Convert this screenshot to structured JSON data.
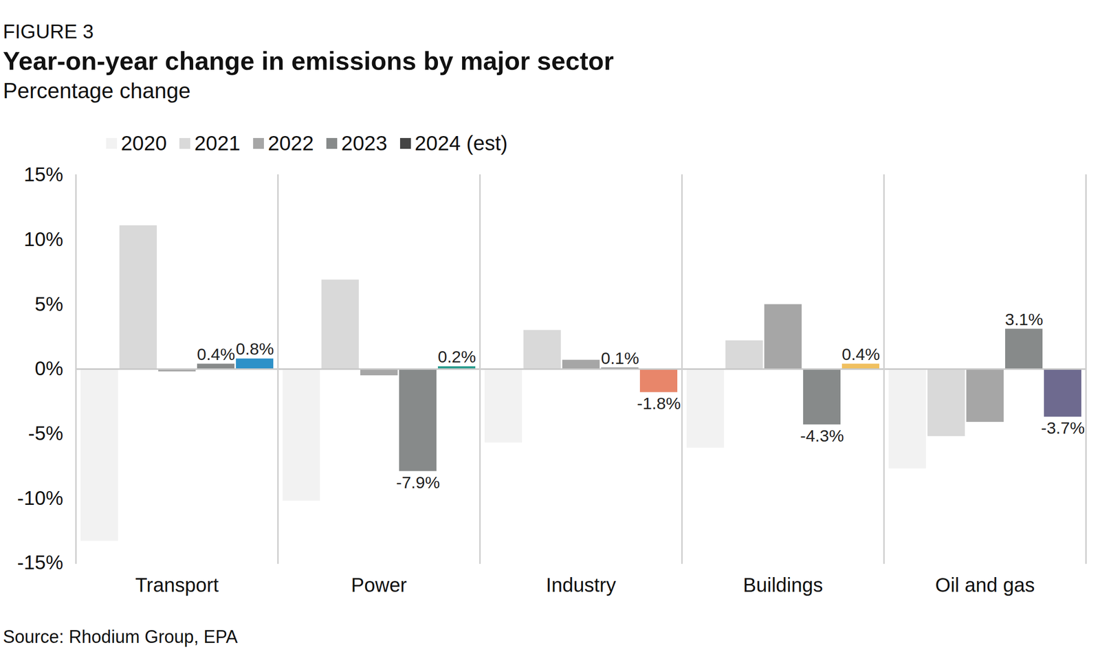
{
  "chart_data": {
    "type": "bar",
    "figure_label": "FIGURE 3",
    "title": "Year-on-year change in emissions by major sector",
    "subtitle": "Percentage change",
    "caption": "Source: Rhodium Group, EPA",
    "categories": [
      "Transport",
      "Power",
      "Industry",
      "Buildings",
      "Oil and gas"
    ],
    "series": [
      {
        "name": "2020",
        "color": "#f2f2f2",
        "values": [
          -13.3,
          -10.2,
          -5.7,
          -6.1,
          -7.7
        ]
      },
      {
        "name": "2021",
        "color": "#d9d9d9",
        "values": [
          11.1,
          6.9,
          3.0,
          2.2,
          -5.2
        ]
      },
      {
        "name": "2022",
        "color": "#a6a6a6",
        "values": [
          -0.2,
          -0.5,
          0.7,
          5.0,
          -4.1
        ]
      },
      {
        "name": "2023",
        "color": "#878a8a",
        "values": [
          0.4,
          -7.9,
          0.1,
          -4.3,
          3.1
        ],
        "data_labels": true,
        "value_labels": [
          "0.4%",
          "-7.9%",
          "0.1%",
          "-4.3%",
          "3.1%"
        ]
      },
      {
        "name": "2024 (est)",
        "color": "#444444",
        "values": [
          0.8,
          0.2,
          -1.8,
          0.4,
          -3.7
        ],
        "colors": [
          "#2e91c8",
          "#2a9d8f",
          "#e8866a",
          "#f0c060",
          "#6e6a8f"
        ],
        "data_labels": true,
        "value_labels": [
          "0.8%",
          "0.2%",
          "-1.8%",
          "0.4%",
          "-3.7%"
        ]
      }
    ],
    "ylim": [
      -15,
      15
    ],
    "yticks": [
      {
        "value": -15,
        "label": "-15%"
      },
      {
        "value": -10,
        "label": "-10%"
      },
      {
        "value": -5,
        "label": "-5%"
      },
      {
        "value": 0,
        "label": "0%"
      },
      {
        "value": 5,
        "label": "5%"
      },
      {
        "value": 10,
        "label": "10%"
      },
      {
        "value": 15,
        "label": "15%"
      }
    ],
    "grid": false,
    "legend": "top"
  }
}
